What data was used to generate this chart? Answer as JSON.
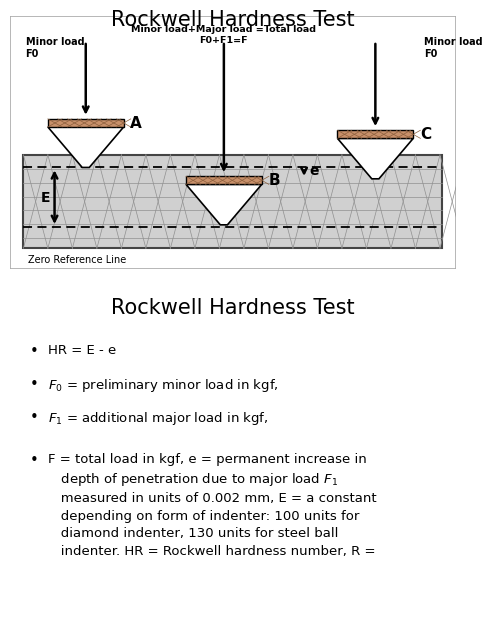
{
  "title1": "Rockwell Hardness Test",
  "title2": "Rockwell Hardness Test",
  "cap_color": "#c8906a",
  "cap_hatch_color": "#8B5E3C",
  "material_bg": "#d0d0d0",
  "material_edge": "#444444",
  "hatch_color": "#999999",
  "text_minor_load_left": "Minor load\nF0",
  "text_center_top": "Minor load+Major load =Total load\nF0+F1=F",
  "text_minor_load_right": "Minor load\nF0",
  "text_zero_ref": "Zero Reference Line",
  "font_title": 15,
  "font_label": 8,
  "font_body": 9.5,
  "panel_bg": "#e8e8e8",
  "panel_edge": "#aaaaaa"
}
